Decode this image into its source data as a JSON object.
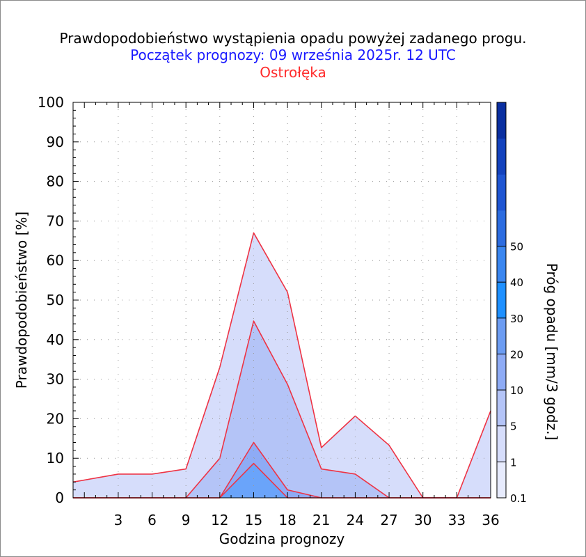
{
  "header": {
    "title": "Prawdopodobieństwo wystąpienia opadu powyżej zadanego progu.",
    "subtitle": "Początek prognozy: 09 września 2025r. 12 UTC",
    "location": "Ostrołęka"
  },
  "colors": {
    "title": "#000000",
    "subtitle": "#1a1aff",
    "location": "#ff2a2a",
    "outline": "#ee3344"
  },
  "chart_data": {
    "type": "area",
    "xlabel": "Godzina prognozy",
    "ylabel": "Prawdopodobieństwo [%]",
    "xlim": [
      -1,
      36
    ],
    "ylim": [
      0,
      100
    ],
    "x_ticks": [
      3,
      6,
      9,
      12,
      15,
      18,
      21,
      24,
      27,
      30,
      33,
      36
    ],
    "y_ticks": [
      0,
      10,
      20,
      30,
      40,
      50,
      60,
      70,
      80,
      90,
      100
    ],
    "grid": "dotted",
    "x": [
      -1,
      3,
      6,
      9,
      12,
      15,
      18,
      21,
      24,
      27,
      30,
      33,
      36
    ],
    "series": [
      {
        "threshold": 0.1,
        "color": "#d6ddfb",
        "values": [
          4,
          6,
          6,
          7.3,
          33,
          67,
          52,
          12.7,
          20.7,
          13.3,
          0,
          0,
          22
        ]
      },
      {
        "threshold": 1,
        "color": "#b4c4f7",
        "values": [
          0,
          0,
          0,
          0,
          10,
          44.7,
          28.7,
          7.3,
          6,
          0,
          0,
          0,
          0
        ]
      },
      {
        "threshold": 5,
        "color": "#8eabf5",
        "values": [
          0,
          0,
          0,
          0,
          0,
          14,
          2,
          0,
          0,
          0,
          0,
          0,
          0
        ]
      },
      {
        "threshold": 10,
        "color": "#6aa4fa",
        "values": [
          0,
          0,
          0,
          0,
          0,
          8.7,
          0,
          0,
          0,
          0,
          0,
          0,
          0
        ]
      }
    ],
    "colorbar": {
      "label": "Próg opadu [mm/3 godz.]",
      "tick_labels": [
        "0.1",
        "1",
        "5",
        "10",
        "20",
        "30",
        "40",
        "50"
      ],
      "colors": [
        "#e7ebfd",
        "#d6ddfb",
        "#b4c4f7",
        "#8eabf5",
        "#6c9cf2",
        "#1e90ff",
        "#3a86f0",
        "#2c6ce0",
        "#1f55d2",
        "#1342bd",
        "#0a2fa0"
      ]
    }
  }
}
